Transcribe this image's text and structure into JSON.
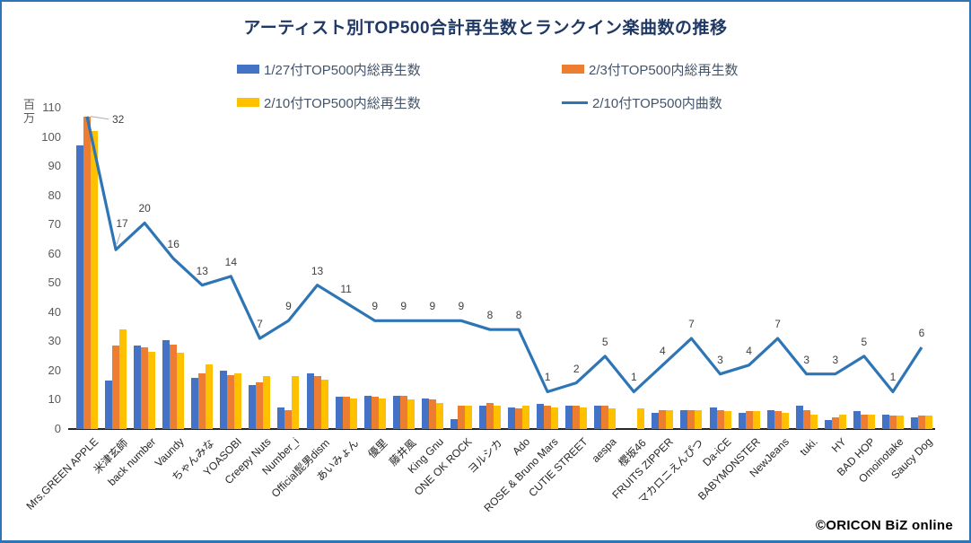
{
  "title": "アーティスト別TOP500合計再生数とランクイン楽曲数の推移",
  "copyright": "©ORICON BiZ online",
  "legend": [
    {
      "label": "1/27付TOP500内総再生数",
      "type": "bar",
      "color": "#4472C4"
    },
    {
      "label": "2/3付TOP500内総再生数",
      "type": "bar",
      "color": "#ED7D31"
    },
    {
      "label": "2/10付TOP500内総再生数",
      "type": "bar",
      "color": "#FFC000"
    },
    {
      "label": "2/10付TOP500内曲数",
      "type": "line",
      "color": "#2E75B6"
    }
  ],
  "y_axis": {
    "unit_label": "百\n万",
    "min": 0,
    "max": 110,
    "tick_step": 10
  },
  "chart_data": {
    "type": "bar",
    "subtype": "grouped-bars-with-line-overlay",
    "title": "アーティスト別TOP500合計再生数とランクイン楽曲数の推移",
    "xlabel": "",
    "ylabel": "百万",
    "ylim": [
      0,
      110
    ],
    "grid": false,
    "legend_position": "top",
    "categories": [
      "Mrs.GREEN APPLE",
      "米津玄師",
      "back number",
      "Vaundy",
      "ちゃんみな",
      "YOASOBI",
      "Creepy Nuts",
      "Number_i",
      "Official髭男dism",
      "あいみょん",
      "優里",
      "藤井風",
      "King Gnu",
      "ONE OK ROCK",
      "ヨルシカ",
      "Ado",
      "ROSE & Bruno Mars",
      "CUTIE STREET",
      "aespa",
      "櫻坂46",
      "FRUITS ZIPPER",
      "マカロニえんぴつ",
      "Da-iCE",
      "BABYMONSTER",
      "NewJeans",
      "tuki.",
      "HY",
      "BAD HOP",
      "Omoinotake",
      "Saucy Dog"
    ],
    "series": [
      {
        "name": "1/27付TOP500内総再生数",
        "type": "bar",
        "color": "#4472C4",
        "unit": "百万",
        "values": [
          97,
          16.5,
          28.5,
          30.5,
          17.5,
          20,
          15,
          7.5,
          19,
          11,
          11.5,
          11.5,
          10.5,
          3.5,
          8,
          7.5,
          8.5,
          8,
          8,
          0,
          5.5,
          6.5,
          7.5,
          5.5,
          6.5,
          8,
          3,
          6,
          5,
          4
        ]
      },
      {
        "name": "2/3付TOP500内総再生数",
        "type": "bar",
        "color": "#ED7D31",
        "unit": "百万",
        "values": [
          107,
          28.5,
          28,
          29,
          19,
          18.5,
          16,
          6.5,
          18,
          11,
          11,
          11.5,
          10,
          8,
          9,
          7,
          8,
          8,
          8,
          0,
          6.5,
          6.5,
          6.5,
          6,
          6,
          6.5,
          4,
          5,
          4.5,
          4.5
        ]
      },
      {
        "name": "2/10付TOP500内総再生数",
        "type": "bar",
        "color": "#FFC000",
        "unit": "百万",
        "values": [
          102,
          34,
          26.5,
          26,
          22,
          19,
          18,
          18,
          17,
          10.5,
          10.5,
          10,
          9,
          8,
          8,
          8,
          7.5,
          7.5,
          7,
          7,
          6.5,
          6.5,
          6,
          6,
          5.5,
          5,
          5,
          5,
          4.5,
          4.5
        ]
      },
      {
        "name": "2/10付TOP500内曲数",
        "type": "line",
        "color": "#2E75B6",
        "labels_shown": true,
        "values": [
          32,
          17,
          20,
          16,
          13,
          14,
          7,
          9,
          13,
          11,
          9,
          9,
          9,
          9,
          8,
          8,
          1,
          2,
          5,
          1,
          4,
          7,
          3,
          4,
          7,
          3,
          3,
          5,
          1,
          6
        ]
      }
    ]
  }
}
